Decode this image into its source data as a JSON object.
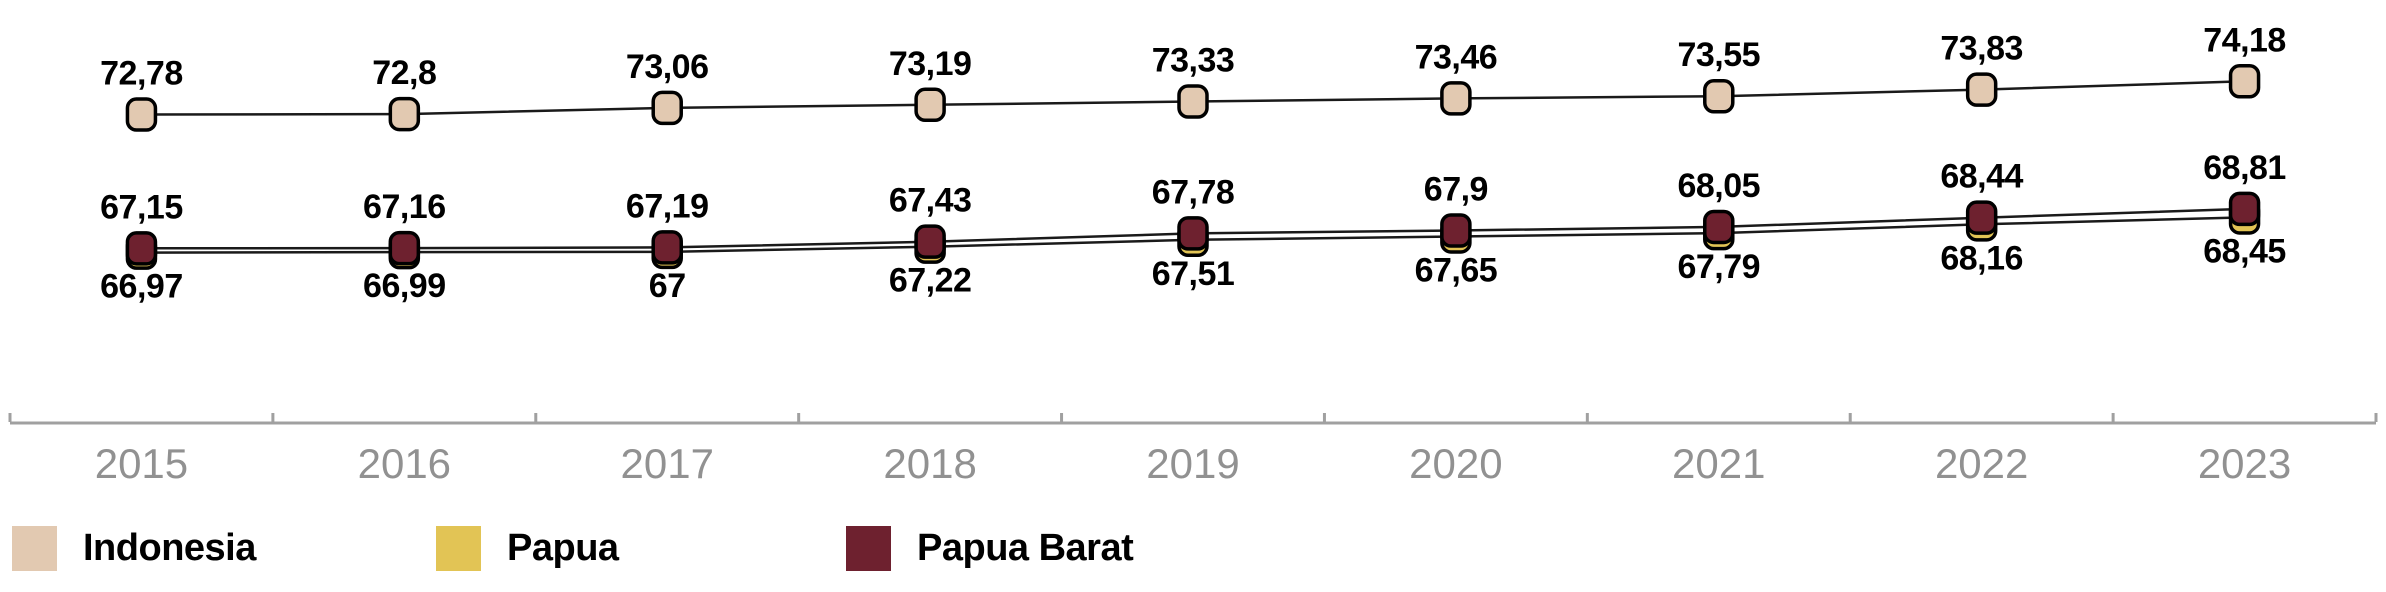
{
  "chart_data": {
    "type": "line",
    "categories": [
      "2015",
      "2016",
      "2017",
      "2018",
      "2019",
      "2020",
      "2021",
      "2022",
      "2023"
    ],
    "series": [
      {
        "name": "Indonesia",
        "values": [
          72.78,
          72.8,
          73.06,
          73.19,
          73.33,
          73.46,
          73.55,
          73.83,
          74.18
        ],
        "labels": [
          "72,78",
          "72,8",
          "73,06",
          "73,19",
          "73,33",
          "73,46",
          "73,55",
          "73,83",
          "74,18"
        ],
        "color": "#E2C9B1",
        "label_position": "above"
      },
      {
        "name": "Papua",
        "values": [
          66.97,
          66.99,
          67.0,
          67.22,
          67.51,
          67.65,
          67.79,
          68.16,
          68.45
        ],
        "labels": [
          "66,97",
          "66,99",
          "67",
          "67,22",
          "67,51",
          "67,65",
          "67,79",
          "68,16",
          "68,45"
        ],
        "color": "#E2C455",
        "label_position": "below"
      },
      {
        "name": "Papua Barat",
        "values": [
          67.15,
          67.16,
          67.19,
          67.43,
          67.78,
          67.9,
          68.05,
          68.44,
          68.81
        ],
        "labels": [
          "67,15",
          "67,16",
          "67,19",
          "67,43",
          "67,78",
          "67,9",
          "68,05",
          "68,44",
          "68,81"
        ],
        "color": "#6E212F",
        "label_position": "above"
      }
    ],
    "title": "",
    "xlabel": "",
    "ylabel": "",
    "ylim": [
      59.8,
      77.6
    ],
    "grid": false,
    "legend_position": "bottom-left",
    "line_color": "#1A1A1A",
    "marker_border_color": "#000000",
    "data_label_color": "#000000",
    "axis_color": "#A0A0A0",
    "tick_label_color": "#919191"
  }
}
